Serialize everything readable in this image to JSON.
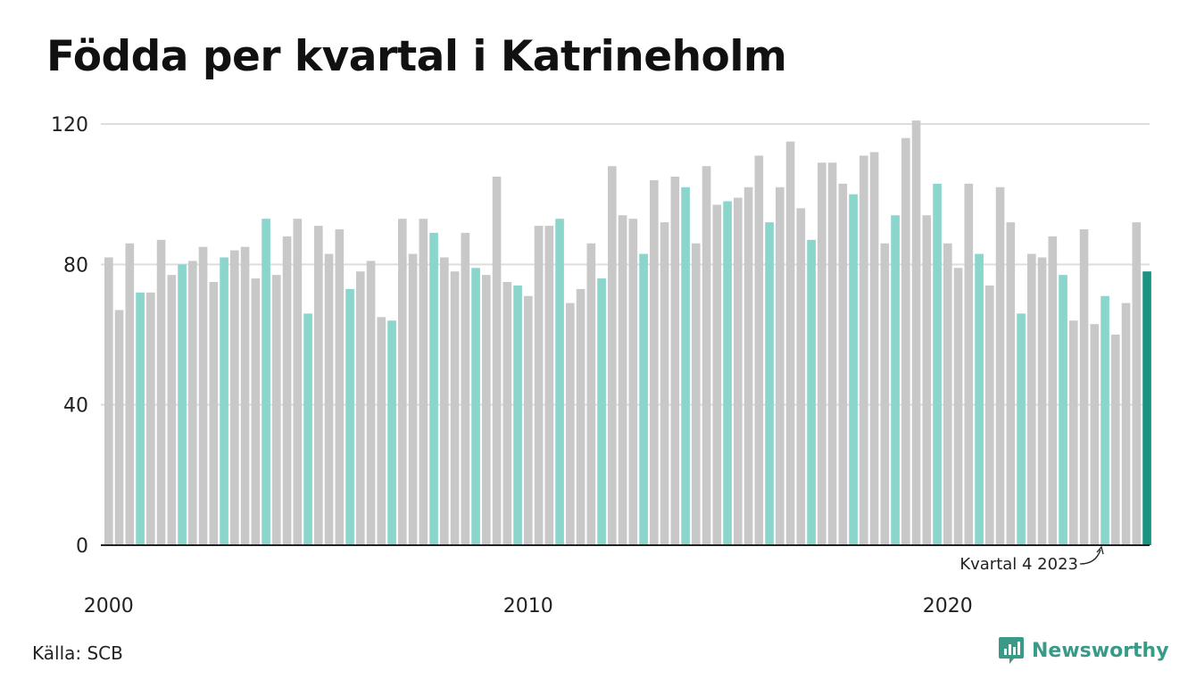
{
  "title": "Födda per kvartal i Katrineholm",
  "source": "Källa: SCB",
  "brand": "Newsworthy",
  "colors": {
    "bar_default": "#c8c8c8",
    "bar_q4": "#8ad6cc",
    "bar_latest": "#1a9382",
    "grid": "#dddddd",
    "axis": "#222222",
    "brand": "#3a9a88"
  },
  "chart_data": {
    "type": "bar",
    "start_year": 2000,
    "x_tick_labels": [
      "2000",
      "2010",
      "2020"
    ],
    "ylim": [
      0,
      120
    ],
    "y_ticks": [
      0,
      40,
      80,
      120
    ],
    "grid": true,
    "highlight": "Kvartal 4",
    "annotation": "Kvartal 4 2023",
    "values": [
      82,
      67,
      86,
      72,
      72,
      87,
      77,
      80,
      81,
      85,
      75,
      82,
      84,
      85,
      76,
      93,
      77,
      88,
      93,
      66,
      91,
      83,
      90,
      73,
      78,
      81,
      65,
      64,
      93,
      83,
      93,
      89,
      82,
      78,
      89,
      79,
      77,
      105,
      75,
      74,
      71,
      91,
      91,
      93,
      69,
      73,
      86,
      76,
      108,
      94,
      93,
      83,
      104,
      92,
      105,
      102,
      86,
      108,
      97,
      98,
      99,
      102,
      111,
      92,
      102,
      115,
      96,
      87,
      109,
      109,
      103,
      100,
      111,
      112,
      86,
      94,
      116,
      121,
      94,
      103,
      86,
      79,
      103,
      83,
      74,
      102,
      92,
      66,
      83,
      82,
      88,
      77,
      64,
      90,
      63,
      71,
      60,
      69,
      92,
      78
    ]
  }
}
